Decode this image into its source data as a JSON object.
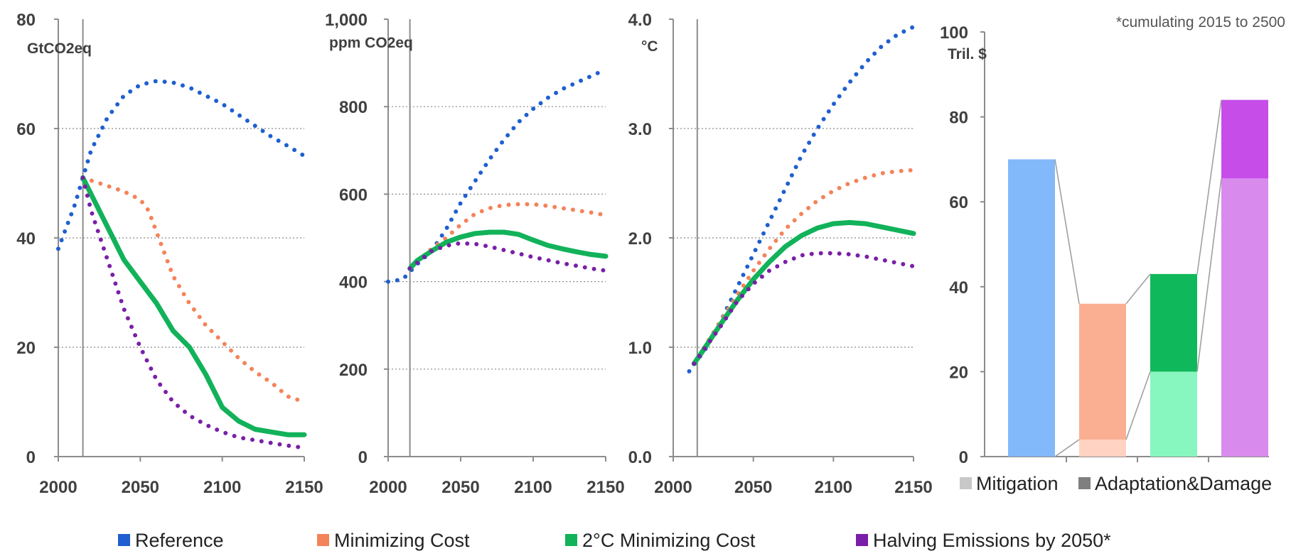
{
  "colors": {
    "reference": "#1f5fcf",
    "minimizing_cost": "#f4835a",
    "two_deg": "#12b25a",
    "halving": "#7a1fa8"
  },
  "legend": [
    {
      "key": "reference",
      "label": "Reference"
    },
    {
      "key": "minimizing_cost",
      "label": "Minimizing Cost"
    },
    {
      "key": "two_deg",
      "label": "2°C Minimizing Cost"
    },
    {
      "key": "halving",
      "label": "Halving Emissions by 2050*"
    }
  ],
  "note": "*cumulating 2015 to 2500",
  "chart_data": [
    {
      "type": "line",
      "ylabel": "GtCO2eq",
      "xlim": [
        2000,
        2150
      ],
      "ylim": [
        0,
        80
      ],
      "xticks": [
        2000,
        2050,
        2100,
        2150
      ],
      "yticks": [
        "0",
        "20",
        "40",
        "60",
        "80"
      ],
      "grid": true,
      "series": [
        {
          "key": "reference",
          "style": "dotted",
          "points": [
            [
              2000,
              38
            ],
            [
              2010,
              46
            ],
            [
              2015,
              51
            ],
            [
              2020,
              56
            ],
            [
              2030,
              62
            ],
            [
              2040,
              66
            ],
            [
              2050,
              68
            ],
            [
              2060,
              68.7
            ],
            [
              2070,
              68.4
            ],
            [
              2080,
              67.5
            ],
            [
              2090,
              66
            ],
            [
              2100,
              64.5
            ],
            [
              2110,
              62.5
            ],
            [
              2120,
              60.5
            ],
            [
              2130,
              58.5
            ],
            [
              2140,
              56.8
            ],
            [
              2150,
              55
            ]
          ]
        },
        {
          "key": "minimizing_cost",
          "style": "dotted",
          "points": [
            [
              2015,
              51
            ],
            [
              2020,
              50.5
            ],
            [
              2030,
              49.5
            ],
            [
              2040,
              48.5
            ],
            [
              2050,
              47
            ],
            [
              2055,
              45
            ],
            [
              2060,
              41
            ],
            [
              2070,
              33
            ],
            [
              2080,
              28
            ],
            [
              2090,
              24
            ],
            [
              2100,
              21
            ],
            [
              2110,
              18
            ],
            [
              2120,
              15.5
            ],
            [
              2130,
              13.5
            ],
            [
              2140,
              11
            ],
            [
              2150,
              10
            ]
          ]
        },
        {
          "key": "two_deg",
          "style": "solid",
          "points": [
            [
              2015,
              51
            ],
            [
              2020,
              48
            ],
            [
              2030,
              42
            ],
            [
              2040,
              36
            ],
            [
              2050,
              32
            ],
            [
              2060,
              28
            ],
            [
              2070,
              23
            ],
            [
              2080,
              20
            ],
            [
              2090,
              15
            ],
            [
              2100,
              9
            ],
            [
              2110,
              6.5
            ],
            [
              2120,
              5
            ],
            [
              2130,
              4.5
            ],
            [
              2140,
              4
            ],
            [
              2150,
              4
            ]
          ]
        },
        {
          "key": "halving",
          "style": "dotted",
          "points": [
            [
              2015,
              51
            ],
            [
              2020,
              45
            ],
            [
              2030,
              36
            ],
            [
              2040,
              27
            ],
            [
              2050,
              20
            ],
            [
              2060,
              14
            ],
            [
              2070,
              10
            ],
            [
              2080,
              7.5
            ],
            [
              2090,
              5.8
            ],
            [
              2100,
              4.5
            ],
            [
              2110,
              3.5
            ],
            [
              2120,
              3
            ],
            [
              2130,
              2.5
            ],
            [
              2140,
              2
            ],
            [
              2150,
              1.6
            ]
          ]
        }
      ]
    },
    {
      "type": "line",
      "ylabel": "ppm CO2eq",
      "xlim": [
        2000,
        2150
      ],
      "ylim": [
        0,
        1000
      ],
      "xticks": [
        2000,
        2050,
        2100,
        2150
      ],
      "yticks": [
        "0",
        "200",
        "400",
        "600",
        "800",
        "1,000"
      ],
      "grid": true,
      "series": [
        {
          "key": "reference",
          "style": "dotted",
          "points": [
            [
              2000,
              400
            ],
            [
              2010,
              405
            ],
            [
              2020,
              440
            ],
            [
              2030,
              470
            ],
            [
              2040,
              520
            ],
            [
              2050,
              580
            ],
            [
              2060,
              630
            ],
            [
              2070,
              680
            ],
            [
              2080,
              725
            ],
            [
              2090,
              765
            ],
            [
              2100,
              795
            ],
            [
              2110,
              820
            ],
            [
              2120,
              840
            ],
            [
              2130,
              855
            ],
            [
              2140,
              870
            ],
            [
              2150,
              885
            ]
          ]
        },
        {
          "key": "minimizing_cost",
          "style": "dotted",
          "points": [
            [
              2015,
              430
            ],
            [
              2030,
              475
            ],
            [
              2040,
              500
            ],
            [
              2050,
              530
            ],
            [
              2060,
              555
            ],
            [
              2070,
              568
            ],
            [
              2080,
              575
            ],
            [
              2090,
              577
            ],
            [
              2100,
              577
            ],
            [
              2110,
              573
            ],
            [
              2120,
              568
            ],
            [
              2130,
              563
            ],
            [
              2140,
              558
            ],
            [
              2150,
              552
            ]
          ]
        },
        {
          "key": "two_deg",
          "style": "solid",
          "points": [
            [
              2015,
              430
            ],
            [
              2020,
              448
            ],
            [
              2030,
              470
            ],
            [
              2040,
              490
            ],
            [
              2050,
              502
            ],
            [
              2060,
              510
            ],
            [
              2070,
              513
            ],
            [
              2080,
              513
            ],
            [
              2090,
              508
            ],
            [
              2100,
              495
            ],
            [
              2110,
              483
            ],
            [
              2120,
              475
            ],
            [
              2130,
              468
            ],
            [
              2140,
              462
            ],
            [
              2150,
              458
            ]
          ]
        },
        {
          "key": "halving",
          "style": "dotted",
          "points": [
            [
              2015,
              430
            ],
            [
              2030,
              470
            ],
            [
              2040,
              482
            ],
            [
              2050,
              488
            ],
            [
              2060,
              486
            ],
            [
              2070,
              480
            ],
            [
              2080,
              472
            ],
            [
              2090,
              464
            ],
            [
              2100,
              456
            ],
            [
              2110,
              449
            ],
            [
              2120,
              442
            ],
            [
              2130,
              436
            ],
            [
              2140,
              430
            ],
            [
              2150,
              425
            ]
          ]
        }
      ]
    },
    {
      "type": "line",
      "ylabel": "°C",
      "xlim": [
        2000,
        2150
      ],
      "ylim": [
        0,
        4
      ],
      "xticks": [
        2000,
        2050,
        2100,
        2150
      ],
      "yticks": [
        "0.0",
        "1.0",
        "2.0",
        "3.0",
        "4.0"
      ],
      "grid": true,
      "series": [
        {
          "key": "reference",
          "style": "dotted",
          "points": [
            [
              2010,
              0.78
            ],
            [
              2020,
              0.98
            ],
            [
              2030,
              1.25
            ],
            [
              2040,
              1.55
            ],
            [
              2050,
              1.85
            ],
            [
              2060,
              2.15
            ],
            [
              2070,
              2.45
            ],
            [
              2080,
              2.75
            ],
            [
              2090,
              3.0
            ],
            [
              2100,
              3.22
            ],
            [
              2110,
              3.42
            ],
            [
              2120,
              3.6
            ],
            [
              2130,
              3.75
            ],
            [
              2140,
              3.86
            ],
            [
              2150,
              3.93
            ]
          ]
        },
        {
          "key": "minimizing_cost",
          "style": "dotted",
          "points": [
            [
              2013,
              0.85
            ],
            [
              2030,
              1.25
            ],
            [
              2040,
              1.48
            ],
            [
              2050,
              1.7
            ],
            [
              2060,
              1.9
            ],
            [
              2070,
              2.08
            ],
            [
              2080,
              2.22
            ],
            [
              2090,
              2.34
            ],
            [
              2100,
              2.43
            ],
            [
              2110,
              2.5
            ],
            [
              2120,
              2.55
            ],
            [
              2130,
              2.59
            ],
            [
              2140,
              2.61
            ],
            [
              2150,
              2.62
            ]
          ]
        },
        {
          "key": "two_deg",
          "style": "solid",
          "points": [
            [
              2013,
              0.85
            ],
            [
              2020,
              1.0
            ],
            [
              2030,
              1.22
            ],
            [
              2040,
              1.43
            ],
            [
              2050,
              1.62
            ],
            [
              2060,
              1.78
            ],
            [
              2070,
              1.92
            ],
            [
              2080,
              2.02
            ],
            [
              2090,
              2.09
            ],
            [
              2100,
              2.13
            ],
            [
              2110,
              2.14
            ],
            [
              2120,
              2.13
            ],
            [
              2130,
              2.1
            ],
            [
              2140,
              2.07
            ],
            [
              2150,
              2.04
            ]
          ]
        },
        {
          "key": "halving",
          "style": "dotted",
          "points": [
            [
              2013,
              0.85
            ],
            [
              2030,
              1.2
            ],
            [
              2040,
              1.42
            ],
            [
              2050,
              1.58
            ],
            [
              2060,
              1.7
            ],
            [
              2070,
              1.78
            ],
            [
              2080,
              1.84
            ],
            [
              2090,
              1.86
            ],
            [
              2100,
              1.86
            ],
            [
              2110,
              1.85
            ],
            [
              2120,
              1.83
            ],
            [
              2130,
              1.8
            ],
            [
              2140,
              1.77
            ],
            [
              2150,
              1.74
            ]
          ]
        }
      ]
    },
    {
      "type": "bar",
      "ylabel": "Tril. $",
      "ylim": [
        0,
        100
      ],
      "yticks": [
        "0",
        "20",
        "40",
        "60",
        "80",
        "100"
      ],
      "grid": false,
      "stack_labels": [
        "Mitigation",
        "Adaptation&Damage"
      ],
      "bars": [
        {
          "key": "reference",
          "mitigation": 0,
          "adaptation_damage": 70,
          "mitigation_color": "#b3d2ff",
          "adaptation_color": "#82b9fb"
        },
        {
          "key": "minimizing_cost",
          "mitigation": 4,
          "adaptation_damage": 32,
          "mitigation_color": "#ffd2c2",
          "adaptation_color": "#fbaf92"
        },
        {
          "key": "two_deg",
          "mitigation": 20,
          "adaptation_damage": 23,
          "mitigation_color": "#88f6bf",
          "adaptation_color": "#0fb85a"
        },
        {
          "key": "halving",
          "mitigation": 65.5,
          "adaptation_damage": 18.5,
          "mitigation_color": "#d98aed",
          "adaptation_color": "#c64de8"
        }
      ],
      "stack_legend_colors": [
        "#c8c8c8",
        "#7f7f7f"
      ]
    }
  ]
}
